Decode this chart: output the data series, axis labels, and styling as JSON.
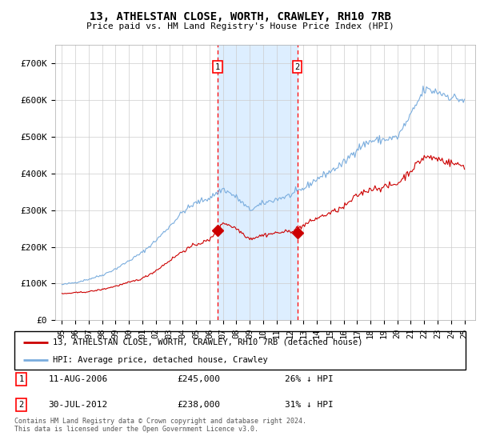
{
  "title": "13, ATHELSTAN CLOSE, WORTH, CRAWLEY, RH10 7RB",
  "subtitle": "Price paid vs. HM Land Registry's House Price Index (HPI)",
  "property_label": "13, ATHELSTAN CLOSE, WORTH, CRAWLEY, RH10 7RB (detached house)",
  "hpi_label": "HPI: Average price, detached house, Crawley",
  "footnote": "Contains HM Land Registry data © Crown copyright and database right 2024.\nThis data is licensed under the Open Government Licence v3.0.",
  "transaction1_date": "11-AUG-2006",
  "transaction1_price": 245000,
  "transaction1_note": "26% ↓ HPI",
  "transaction2_date": "30-JUL-2012",
  "transaction2_price": 238000,
  "transaction2_note": "31% ↓ HPI",
  "property_color": "#cc0000",
  "hpi_color": "#7aadde",
  "highlight_color": "#ddeeff",
  "ylim": [
    0,
    750000
  ],
  "yticks": [
    0,
    100000,
    200000,
    300000,
    400000,
    500000,
    600000,
    700000
  ],
  "ytick_labels": [
    "£0",
    "£100K",
    "£200K",
    "£300K",
    "£400K",
    "£500K",
    "£600K",
    "£700K"
  ],
  "transaction1_x": 2006.6,
  "transaction1_y": 245000,
  "transaction2_x": 2012.55,
  "transaction2_y": 238000,
  "xlim_left": 1994.5,
  "xlim_right": 2025.8,
  "xtick_years": [
    1995,
    1996,
    1997,
    1998,
    1999,
    2000,
    2001,
    2002,
    2003,
    2004,
    2005,
    2006,
    2007,
    2008,
    2009,
    2010,
    2011,
    2012,
    2013,
    2014,
    2015,
    2016,
    2017,
    2018,
    2019,
    2020,
    2021,
    2022,
    2023,
    2024,
    2025
  ]
}
